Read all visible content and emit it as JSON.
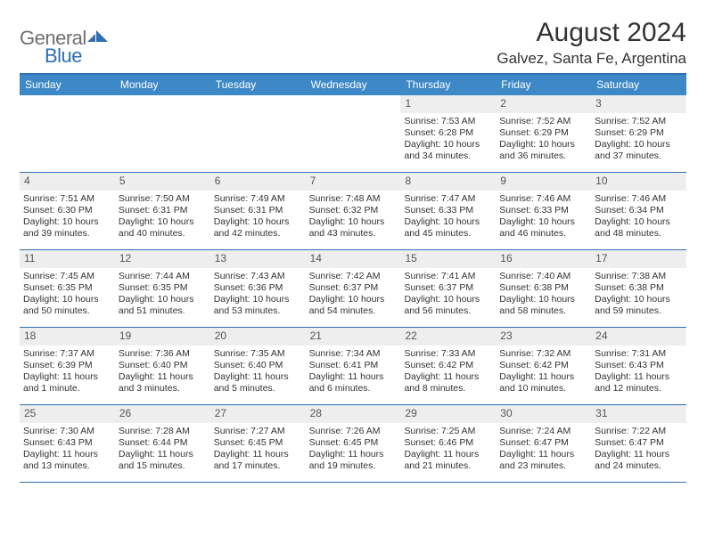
{
  "brand": {
    "general": "General",
    "blue": "Blue"
  },
  "header": {
    "month_title": "August 2024",
    "location": "Galvez, Santa Fe, Argentina"
  },
  "style": {
    "accent_color": "#3d88c7",
    "border_color": "#2f6fb0",
    "daynum_bg": "#eeeeee",
    "text_color": "#333333",
    "logo_gray": "#6f6f6f",
    "logo_blue": "#2f6fb0",
    "title_fontsize": 30,
    "location_fontsize": 17,
    "dow_fontsize": 12,
    "body_fontsize": 10.5
  },
  "days_of_week": [
    "Sunday",
    "Monday",
    "Tuesday",
    "Wednesday",
    "Thursday",
    "Friday",
    "Saturday"
  ],
  "weeks": [
    [
      {
        "empty": true
      },
      {
        "empty": true
      },
      {
        "empty": true
      },
      {
        "empty": true
      },
      {
        "n": "1",
        "sunrise": "Sunrise: 7:53 AM",
        "sunset": "Sunset: 6:28 PM",
        "daylight": "Daylight: 10 hours and 34 minutes."
      },
      {
        "n": "2",
        "sunrise": "Sunrise: 7:52 AM",
        "sunset": "Sunset: 6:29 PM",
        "daylight": "Daylight: 10 hours and 36 minutes."
      },
      {
        "n": "3",
        "sunrise": "Sunrise: 7:52 AM",
        "sunset": "Sunset: 6:29 PM",
        "daylight": "Daylight: 10 hours and 37 minutes."
      }
    ],
    [
      {
        "n": "4",
        "sunrise": "Sunrise: 7:51 AM",
        "sunset": "Sunset: 6:30 PM",
        "daylight": "Daylight: 10 hours and 39 minutes."
      },
      {
        "n": "5",
        "sunrise": "Sunrise: 7:50 AM",
        "sunset": "Sunset: 6:31 PM",
        "daylight": "Daylight: 10 hours and 40 minutes."
      },
      {
        "n": "6",
        "sunrise": "Sunrise: 7:49 AM",
        "sunset": "Sunset: 6:31 PM",
        "daylight": "Daylight: 10 hours and 42 minutes."
      },
      {
        "n": "7",
        "sunrise": "Sunrise: 7:48 AM",
        "sunset": "Sunset: 6:32 PM",
        "daylight": "Daylight: 10 hours and 43 minutes."
      },
      {
        "n": "8",
        "sunrise": "Sunrise: 7:47 AM",
        "sunset": "Sunset: 6:33 PM",
        "daylight": "Daylight: 10 hours and 45 minutes."
      },
      {
        "n": "9",
        "sunrise": "Sunrise: 7:46 AM",
        "sunset": "Sunset: 6:33 PM",
        "daylight": "Daylight: 10 hours and 46 minutes."
      },
      {
        "n": "10",
        "sunrise": "Sunrise: 7:46 AM",
        "sunset": "Sunset: 6:34 PM",
        "daylight": "Daylight: 10 hours and 48 minutes."
      }
    ],
    [
      {
        "n": "11",
        "sunrise": "Sunrise: 7:45 AM",
        "sunset": "Sunset: 6:35 PM",
        "daylight": "Daylight: 10 hours and 50 minutes."
      },
      {
        "n": "12",
        "sunrise": "Sunrise: 7:44 AM",
        "sunset": "Sunset: 6:35 PM",
        "daylight": "Daylight: 10 hours and 51 minutes."
      },
      {
        "n": "13",
        "sunrise": "Sunrise: 7:43 AM",
        "sunset": "Sunset: 6:36 PM",
        "daylight": "Daylight: 10 hours and 53 minutes."
      },
      {
        "n": "14",
        "sunrise": "Sunrise: 7:42 AM",
        "sunset": "Sunset: 6:37 PM",
        "daylight": "Daylight: 10 hours and 54 minutes."
      },
      {
        "n": "15",
        "sunrise": "Sunrise: 7:41 AM",
        "sunset": "Sunset: 6:37 PM",
        "daylight": "Daylight: 10 hours and 56 minutes."
      },
      {
        "n": "16",
        "sunrise": "Sunrise: 7:40 AM",
        "sunset": "Sunset: 6:38 PM",
        "daylight": "Daylight: 10 hours and 58 minutes."
      },
      {
        "n": "17",
        "sunrise": "Sunrise: 7:38 AM",
        "sunset": "Sunset: 6:38 PM",
        "daylight": "Daylight: 10 hours and 59 minutes."
      }
    ],
    [
      {
        "n": "18",
        "sunrise": "Sunrise: 7:37 AM",
        "sunset": "Sunset: 6:39 PM",
        "daylight": "Daylight: 11 hours and 1 minute."
      },
      {
        "n": "19",
        "sunrise": "Sunrise: 7:36 AM",
        "sunset": "Sunset: 6:40 PM",
        "daylight": "Daylight: 11 hours and 3 minutes."
      },
      {
        "n": "20",
        "sunrise": "Sunrise: 7:35 AM",
        "sunset": "Sunset: 6:40 PM",
        "daylight": "Daylight: 11 hours and 5 minutes."
      },
      {
        "n": "21",
        "sunrise": "Sunrise: 7:34 AM",
        "sunset": "Sunset: 6:41 PM",
        "daylight": "Daylight: 11 hours and 6 minutes."
      },
      {
        "n": "22",
        "sunrise": "Sunrise: 7:33 AM",
        "sunset": "Sunset: 6:42 PM",
        "daylight": "Daylight: 11 hours and 8 minutes."
      },
      {
        "n": "23",
        "sunrise": "Sunrise: 7:32 AM",
        "sunset": "Sunset: 6:42 PM",
        "daylight": "Daylight: 11 hours and 10 minutes."
      },
      {
        "n": "24",
        "sunrise": "Sunrise: 7:31 AM",
        "sunset": "Sunset: 6:43 PM",
        "daylight": "Daylight: 11 hours and 12 minutes."
      }
    ],
    [
      {
        "n": "25",
        "sunrise": "Sunrise: 7:30 AM",
        "sunset": "Sunset: 6:43 PM",
        "daylight": "Daylight: 11 hours and 13 minutes."
      },
      {
        "n": "26",
        "sunrise": "Sunrise: 7:28 AM",
        "sunset": "Sunset: 6:44 PM",
        "daylight": "Daylight: 11 hours and 15 minutes."
      },
      {
        "n": "27",
        "sunrise": "Sunrise: 7:27 AM",
        "sunset": "Sunset: 6:45 PM",
        "daylight": "Daylight: 11 hours and 17 minutes."
      },
      {
        "n": "28",
        "sunrise": "Sunrise: 7:26 AM",
        "sunset": "Sunset: 6:45 PM",
        "daylight": "Daylight: 11 hours and 19 minutes."
      },
      {
        "n": "29",
        "sunrise": "Sunrise: 7:25 AM",
        "sunset": "Sunset: 6:46 PM",
        "daylight": "Daylight: 11 hours and 21 minutes."
      },
      {
        "n": "30",
        "sunrise": "Sunrise: 7:24 AM",
        "sunset": "Sunset: 6:47 PM",
        "daylight": "Daylight: 11 hours and 23 minutes."
      },
      {
        "n": "31",
        "sunrise": "Sunrise: 7:22 AM",
        "sunset": "Sunset: 6:47 PM",
        "daylight": "Daylight: 11 hours and 24 minutes."
      }
    ]
  ]
}
